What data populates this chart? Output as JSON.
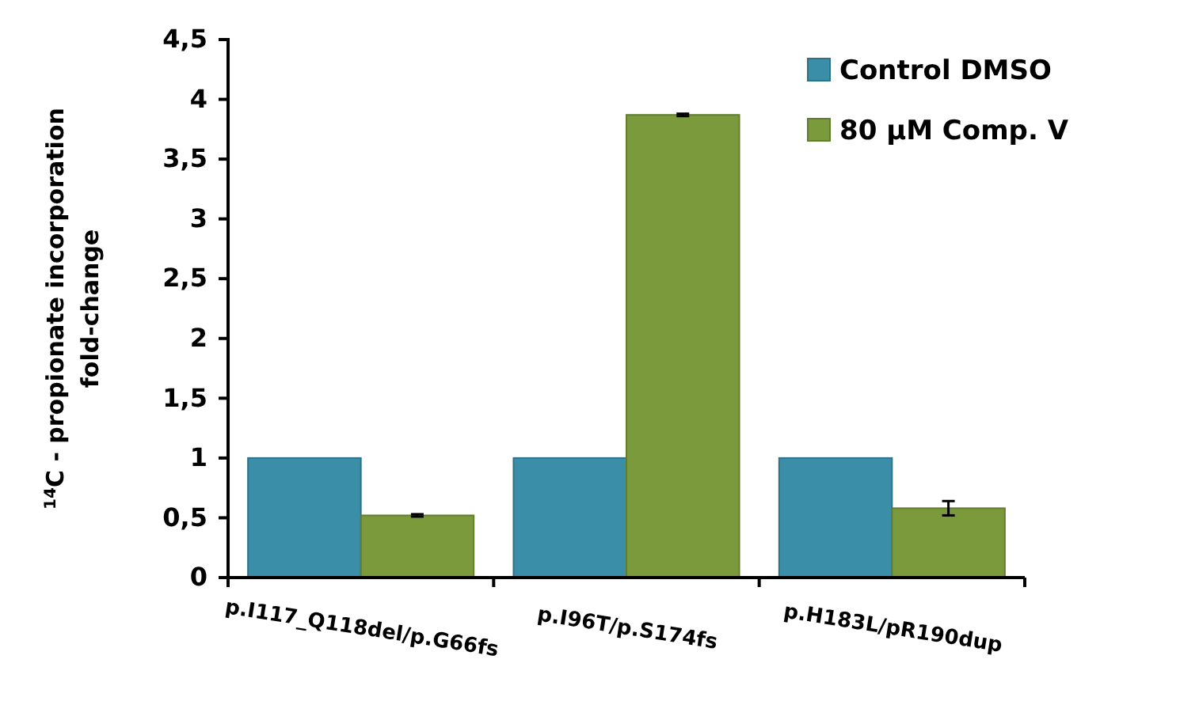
{
  "chart_data": {
    "type": "bar",
    "ylabel": "$^{14}$C - propionate incorporation\nfold-change",
    "categories": [
      "p.I117_Q118del/p.G66fs",
      "p.I96T/p.S174fs",
      "p.H183L/pR190dup"
    ],
    "series": [
      {
        "name": "Control DMSO",
        "color": "#3a8ea8",
        "values": [
          1,
          1,
          1
        ]
      },
      {
        "name": "80 µM Comp. V",
        "color": "#7a9a3c",
        "values": [
          0.52,
          3.87,
          0.58
        ],
        "errors": [
          0.01,
          0.01,
          0.06
        ]
      }
    ],
    "ylim": [
      0,
      4.5
    ],
    "yticks": [
      0,
      {
        "value": 0.5,
        "label": "0,5"
      },
      1,
      {
        "value": 1.5,
        "label": "1,5"
      },
      2,
      {
        "value": 2.5,
        "label": "2,5"
      },
      3,
      {
        "value": 3.5,
        "label": "3,5"
      },
      4,
      {
        "value": 4.5,
        "label": "4,5"
      }
    ],
    "grid": false,
    "legend": "top right"
  }
}
